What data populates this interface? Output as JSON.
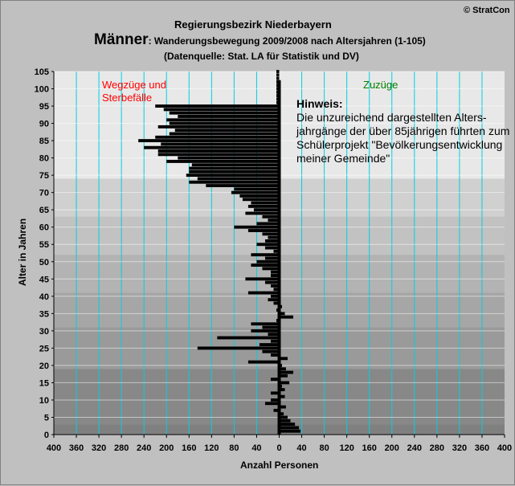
{
  "copyright": "© StratCon",
  "region": "Regierungsbezirk Niederbayern",
  "gender": "Männer",
  "title_suffix": ": Wanderungsbewegung 2009/2008 nach Altersjahren (1-105)",
  "source": "(Datenquelle: Stat. LA für Statistik und DV)",
  "label_left_line1": "Wegzüge und",
  "label_left_line2": "Sterbefälle",
  "label_right": "Zuzüge",
  "note_title": "Hinweis:",
  "note_lines": [
    "Die unzureichend dargestellten Alters-",
    "jahrgänge der über 85jährigen führten zum",
    "Schülerprojekt \"Bevölkerungsentwicklung",
    "meiner Gemeinde\""
  ],
  "colors": {
    "bar": "#000000",
    "gridline": "#00d0e0",
    "zuzuege_label": "#008000",
    "wegzuege_label": "#ff0000"
  },
  "chart_data": {
    "type": "bar",
    "orientation": "horizontal",
    "xlabel": "Anzahl Personen",
    "ylabel": "Alter in Jahren",
    "xlim": [
      -400,
      400
    ],
    "ylim": [
      0,
      105
    ],
    "xticks": [
      -400,
      -360,
      -320,
      -280,
      -240,
      -200,
      -160,
      -120,
      -80,
      -40,
      0,
      40,
      80,
      120,
      160,
      200,
      240,
      280,
      320,
      360,
      400
    ],
    "xtick_labels": [
      "400",
      "360",
      "320",
      "280",
      "240",
      "200",
      "160",
      "120",
      "80",
      "40",
      "0",
      "40",
      "80",
      "120",
      "160",
      "200",
      "240",
      "280",
      "320",
      "360",
      "400"
    ],
    "yticks": [
      0,
      5,
      10,
      15,
      20,
      25,
      30,
      35,
      40,
      45,
      50,
      55,
      60,
      65,
      70,
      75,
      80,
      85,
      90,
      95,
      100,
      105
    ],
    "age_band_shades": [
      "#808080",
      "#888888",
      "#9a9a9a",
      "#a6a6a6",
      "#b3b3b3",
      "#c2c2c2",
      "#d0d0d0",
      "#e8e8e8"
    ],
    "grid": true,
    "bar_color": "#000000",
    "ages": [
      1,
      2,
      3,
      4,
      5,
      6,
      7,
      8,
      9,
      10,
      11,
      12,
      13,
      14,
      15,
      16,
      17,
      18,
      19,
      20,
      21,
      22,
      23,
      24,
      25,
      26,
      27,
      28,
      29,
      30,
      31,
      32,
      33,
      34,
      35,
      36,
      37,
      38,
      39,
      40,
      41,
      42,
      43,
      44,
      45,
      46,
      47,
      48,
      49,
      50,
      51,
      52,
      53,
      54,
      55,
      56,
      57,
      58,
      59,
      60,
      61,
      62,
      63,
      64,
      65,
      66,
      67,
      68,
      69,
      70,
      71,
      72,
      73,
      74,
      75,
      76,
      77,
      78,
      79,
      80,
      81,
      82,
      83,
      84,
      85,
      86,
      87,
      88,
      89,
      90,
      91,
      92,
      93,
      94,
      95,
      96,
      97,
      98,
      99,
      100,
      101,
      102,
      103,
      104,
      105
    ],
    "values": [
      38,
      35,
      28,
      20,
      15,
      8,
      -10,
      12,
      -25,
      -15,
      10,
      -15,
      10,
      5,
      18,
      -15,
      15,
      25,
      12,
      5,
      -55,
      15,
      -15,
      -30,
      -145,
      -35,
      -15,
      -110,
      -20,
      -50,
      -30,
      -50,
      -5,
      25,
      10,
      -5,
      5,
      -10,
      -20,
      -15,
      -55,
      -10,
      -15,
      -25,
      -60,
      -15,
      -15,
      -30,
      -50,
      -40,
      -25,
      -50,
      -10,
      -25,
      -40,
      -25,
      -20,
      -30,
      -55,
      -80,
      -40,
      -20,
      -30,
      -60,
      -45,
      -55,
      -50,
      -65,
      -70,
      -85,
      -80,
      -130,
      -160,
      -145,
      -165,
      -160,
      -160,
      -155,
      -200,
      -180,
      -215,
      -215,
      -240,
      -210,
      -250,
      -220,
      -195,
      -185,
      -215,
      -195,
      -200,
      -180,
      -195,
      -205,
      -220,
      -5,
      -5,
      -5,
      -5,
      -5,
      -5,
      -5,
      -5,
      -5,
      -5
    ]
  }
}
